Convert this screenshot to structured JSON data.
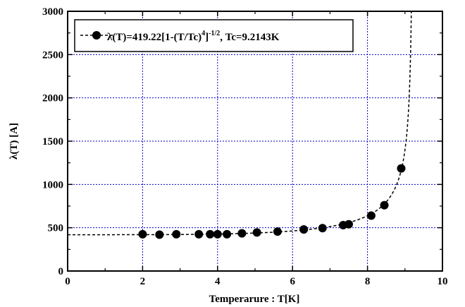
{
  "chart_data": {
    "type": "scatter",
    "xlabel": "Temperarure : T[K]",
    "ylabel": "λ(T) [A]",
    "xlim": [
      0,
      10
    ],
    "ylim": [
      0,
      3000
    ],
    "xticks": [
      0,
      2,
      4,
      6,
      8,
      10
    ],
    "yticks": [
      0,
      500,
      1000,
      1500,
      2000,
      2500,
      3000
    ],
    "xtick_labels": [
      "0",
      "2",
      "4",
      "6",
      "8",
      "10"
    ],
    "ytick_labels": [
      "0",
      "500",
      "1000",
      "1500",
      "2000",
      "2500",
      "3000"
    ],
    "grid": true,
    "legend_position": "top-left",
    "series": [
      {
        "name": "λ(T)=419.22[1-(T/Tc)4]-1/2, Tc=9.2143K",
        "marker": "filled-circle",
        "x": [
          2.0,
          2.45,
          2.9,
          3.5,
          3.8,
          4.0,
          4.25,
          4.65,
          5.05,
          5.6,
          6.3,
          6.8,
          7.35,
          7.5,
          8.1,
          8.45,
          8.9
        ],
        "y": [
          425,
          420,
          425,
          425,
          425,
          425,
          425,
          435,
          445,
          455,
          480,
          495,
          530,
          540,
          640,
          760,
          1185
        ]
      }
    ],
    "fit": {
      "lambda0": 419.22,
      "Tc": 9.2143,
      "style": "dashed"
    },
    "legend": {
      "main": "λ(T)=419.22[1-(T/Tc)",
      "sup1": "4",
      "mid": "]",
      "sup2": "-1/2",
      "tail": ",  Tc=9.2143K"
    }
  }
}
